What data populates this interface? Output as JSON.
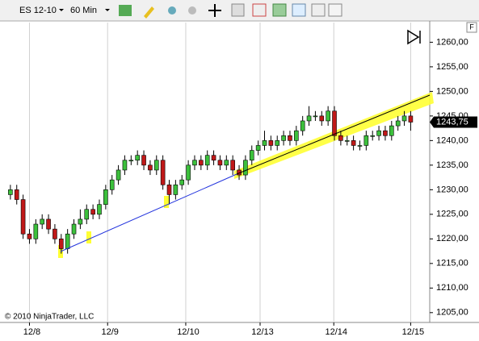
{
  "chart_data": {
    "type": "candlestick",
    "instrument": "ES 12-10",
    "period": "60 Min",
    "copyright": "© 2010 NinjaTrader, LLC",
    "open": [
      1229,
      1230,
      1228,
      1221,
      1220,
      1223,
      1224,
      1222,
      1220,
      1218,
      1221,
      1223,
      1224,
      1226,
      1225,
      1227,
      1230,
      1232,
      1234,
      1236,
      1236,
      1237,
      1235,
      1234,
      1236,
      1231,
      1229,
      1231,
      1232,
      1235,
      1236,
      1235,
      1237,
      1236,
      1235,
      1236,
      1234,
      1233,
      1236,
      1238,
      1239,
      1240,
      1239,
      1240,
      1241,
      1240,
      1242,
      1244,
      1245,
      1245,
      1244,
      1246,
      1241,
      1240,
      1240,
      1239,
      1239,
      1241,
      1241,
      1242,
      1241,
      1243,
      1244,
      1245
    ],
    "high": [
      1231,
      1231,
      1229,
      1222,
      1224,
      1225,
      1225,
      1223,
      1221,
      1222,
      1224,
      1226,
      1227,
      1227,
      1228,
      1231,
      1233,
      1235,
      1237,
      1237,
      1238,
      1238,
      1236,
      1237,
      1237,
      1232,
      1232,
      1233,
      1236,
      1237,
      1237,
      1238,
      1238,
      1237,
      1237,
      1237,
      1235,
      1237,
      1239,
      1240,
      1242,
      1241,
      1241,
      1242,
      1242,
      1243,
      1245,
      1247,
      1246,
      1246,
      1247,
      1247,
      1242,
      1241,
      1241,
      1240,
      1242,
      1242,
      1243,
      1243,
      1244,
      1245,
      1246,
      1246
    ],
    "low": [
      1228,
      1227,
      1220,
      1219,
      1219,
      1222,
      1221,
      1219,
      1217,
      1217,
      1220,
      1222,
      1223,
      1224,
      1224,
      1226,
      1229,
      1231,
      1233,
      1235,
      1235,
      1234,
      1233,
      1233,
      1230,
      1227,
      1228,
      1230,
      1231,
      1234,
      1234,
      1234,
      1235,
      1234,
      1234,
      1233,
      1232,
      1232,
      1235,
      1237,
      1238,
      1238,
      1238,
      1239,
      1239,
      1239,
      1241,
      1243,
      1244,
      1243,
      1243,
      1240,
      1239,
      1239,
      1238,
      1238,
      1238,
      1240,
      1240,
      1240,
      1240,
      1242,
      1243,
      1242
    ],
    "close": [
      1230,
      1228,
      1221,
      1220,
      1223,
      1224,
      1222,
      1220,
      1218,
      1221,
      1223,
      1224,
      1226,
      1225,
      1227,
      1230,
      1232,
      1234,
      1236,
      1236,
      1237,
      1235,
      1234,
      1236,
      1231,
      1229,
      1231,
      1232,
      1235,
      1236,
      1235,
      1237,
      1236,
      1235,
      1236,
      1234,
      1233,
      1236,
      1238,
      1239,
      1240,
      1239,
      1240,
      1241,
      1240,
      1242,
      1244,
      1245,
      1245,
      1244,
      1246,
      1241,
      1240,
      1240,
      1239,
      1239,
      1241,
      1241,
      1242,
      1241,
      1243,
      1244,
      1245,
      1243.75
    ],
    "up_color": "#3cc03c",
    "down_color": "#c01818",
    "xlim": [
      0,
      67
    ],
    "xticks": [
      {
        "value": 4,
        "label": "12/8"
      },
      {
        "value": 16.3,
        "label": "12/9"
      },
      {
        "value": 28.6,
        "label": "12/10"
      },
      {
        "value": 40.3,
        "label": "12/13"
      },
      {
        "value": 51.9,
        "label": "12/14"
      },
      {
        "value": 64,
        "label": "12/15"
      }
    ],
    "ylim": [
      1203,
      1264
    ],
    "yticks": [
      {
        "value": 1205,
        "label": "1205,00"
      },
      {
        "value": 1210,
        "label": "1210,00"
      },
      {
        "value": 1215,
        "label": "1215,00"
      },
      {
        "value": 1220,
        "label": "1220,00"
      },
      {
        "value": 1225,
        "label": "1225,00"
      },
      {
        "value": 1230,
        "label": "1230,00"
      },
      {
        "value": 1235,
        "label": "1235,00"
      },
      {
        "value": 1240,
        "label": "1240,00"
      },
      {
        "value": 1245,
        "label": "1245,00"
      },
      {
        "value": 1250,
        "label": "1250,00"
      },
      {
        "value": 1255,
        "label": "1255,00"
      },
      {
        "value": 1260,
        "label": "1260,00"
      }
    ],
    "grid": true,
    "last_price": {
      "value": 1243.75,
      "label": "1243,75"
    }
  }
}
